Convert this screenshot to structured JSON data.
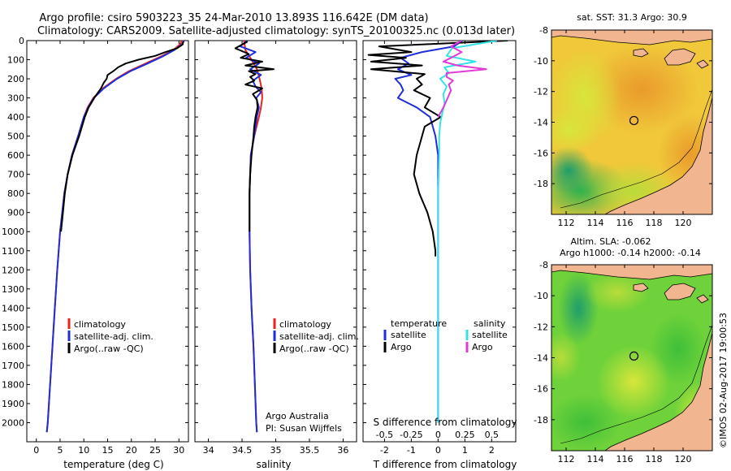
{
  "title_line1": "Argo profile: csiro 5903223_35 24-Mar-2010 13.893S 116.642E (DM data)",
  "title_line2": "Climatology: CARS2009. Satellite-adjusted climatology: synTS_20100325.nc (0.013d later)",
  "colors": {
    "climatology": "#e8231c",
    "satellite": "#1f2fd8",
    "argo": "#000000",
    "sal_satellite": "#33e3e6",
    "sal_argo": "#e23ad6",
    "land": "#f1b58f",
    "sst_bg": "#f0c83a",
    "sla_bg": "#6fd23a"
  },
  "chart_data": [
    {
      "type": "line",
      "id": "temperature",
      "xlabel": "temperature (deg C)",
      "ylabel": "",
      "xlim": [
        -2,
        32
      ],
      "ylim": [
        2100,
        0
      ],
      "xticks": [
        0,
        5,
        10,
        15,
        20,
        25,
        30
      ],
      "yticks": [
        0,
        100,
        200,
        300,
        400,
        500,
        600,
        700,
        800,
        900,
        1000,
        1100,
        1200,
        1300,
        1400,
        1500,
        1600,
        1700,
        1800,
        1900,
        2000
      ],
      "legend": [
        "climatology",
        "satellite-adj. clim.",
        "Argo(..raw -QC)"
      ],
      "series": [
        {
          "name": "climatology",
          "depth": [
            0,
            20,
            50,
            80,
            120,
            160,
            200,
            250,
            300,
            350,
            400,
            500,
            600,
            700,
            800,
            1000,
            1200,
            1400,
            1600,
            1800,
            2000,
            2050
          ],
          "values": [
            30.6,
            30.2,
            28.8,
            26.5,
            23.0,
            19.5,
            16.8,
            14.0,
            12.0,
            10.8,
            10.0,
            8.8,
            7.5,
            6.6,
            5.9,
            5.0,
            4.4,
            3.9,
            3.4,
            2.9,
            2.4,
            2.2
          ]
        },
        {
          "name": "satellite-adj. clim.",
          "depth": [
            0,
            20,
            50,
            80,
            120,
            160,
            200,
            250,
            300,
            350,
            400,
            500,
            600,
            700,
            800,
            1000,
            1200,
            1400,
            1600,
            1800,
            2000,
            2050
          ],
          "values": [
            31.1,
            30.6,
            29.0,
            26.8,
            23.4,
            19.8,
            17.0,
            14.2,
            12.1,
            10.9,
            10.0,
            8.8,
            7.5,
            6.6,
            5.9,
            5.0,
            4.4,
            3.9,
            3.4,
            2.9,
            2.4,
            2.2
          ]
        },
        {
          "name": "Argo(..raw -QC)",
          "depth": [
            5,
            20,
            40,
            60,
            80,
            100,
            120,
            140,
            160,
            180,
            200,
            220,
            250,
            300,
            350,
            400,
            450,
            500,
            600,
            700,
            800,
            900,
            1000
          ],
          "values": [
            30.9,
            30.8,
            29.6,
            27.2,
            25.0,
            21.5,
            18.8,
            17.2,
            16.2,
            15.0,
            14.8,
            14.2,
            13.6,
            12.2,
            11.0,
            10.2,
            9.6,
            9.0,
            7.6,
            6.6,
            6.0,
            5.6,
            5.2
          ]
        }
      ]
    },
    {
      "type": "line",
      "id": "salinity",
      "xlabel": "salinity",
      "ylabel": "",
      "xlim": [
        33.8,
        36.2
      ],
      "ylim": [
        2100,
        0
      ],
      "xticks": [
        34,
        34.5,
        35,
        35.5,
        36
      ],
      "legend": [
        "climatology",
        "satellite-adj. clim.",
        "Argo(..raw -QC)"
      ],
      "annotations": [
        "Argo Australia",
        "PI: Susan Wijffels"
      ],
      "series": [
        {
          "name": "climatology",
          "depth": [
            0,
            50,
            100,
            150,
            200,
            250,
            300,
            350,
            400,
            500,
            600,
            800,
            1000,
            1200,
            1400,
            1600,
            1800,
            2000,
            2050
          ],
          "values": [
            34.53,
            34.55,
            34.64,
            34.72,
            34.76,
            34.79,
            34.8,
            34.78,
            34.75,
            34.68,
            34.63,
            34.61,
            34.61,
            34.62,
            34.64,
            34.67,
            34.69,
            34.71,
            34.72
          ]
        },
        {
          "name": "satellite-adj. clim.",
          "depth": [
            0,
            30,
            60,
            90,
            120,
            150,
            180,
            210,
            240,
            270,
            300,
            350,
            400,
            500,
            600,
            800,
            1000,
            1200,
            1400,
            1600,
            1800,
            2000,
            2050
          ],
          "values": [
            34.58,
            34.47,
            34.7,
            34.56,
            34.75,
            34.62,
            34.78,
            34.66,
            34.7,
            34.78,
            34.71,
            34.75,
            34.72,
            34.68,
            34.63,
            34.61,
            34.61,
            34.62,
            34.64,
            34.67,
            34.69,
            34.71,
            34.72
          ]
        },
        {
          "name": "Argo(..raw -QC)",
          "depth": [
            5,
            40,
            70,
            90,
            110,
            130,
            150,
            160,
            175,
            190,
            210,
            230,
            250,
            280,
            310,
            350,
            400,
            450,
            500,
            600,
            700,
            800,
            900,
            1000
          ],
          "values": [
            34.58,
            34.4,
            34.6,
            34.48,
            34.8,
            34.55,
            34.97,
            34.6,
            34.7,
            34.62,
            34.68,
            34.55,
            34.8,
            34.66,
            34.72,
            34.73,
            34.7,
            34.68,
            34.67,
            34.64,
            34.62,
            34.61,
            34.61,
            34.61
          ]
        }
      ]
    },
    {
      "type": "line",
      "id": "difference",
      "xlabel": "T difference from climatology",
      "x2label": "S difference from climatology",
      "xlim": [
        -2.8,
        2.9
      ],
      "ylim": [
        2100,
        0
      ],
      "xticks": [
        -2,
        -1,
        0,
        1,
        2
      ],
      "x2ticks": [
        "-0.5",
        "-0.25",
        "0",
        "0.25",
        "0.5"
      ],
      "legend": {
        "temperature": [
          "satellite",
          "Argo"
        ],
        "salinity": [
          "satellite",
          "Argo"
        ]
      },
      "legend_headers": [
        "temperature",
        "salinity"
      ],
      "series": [
        {
          "name": "temperature satellite",
          "depth": [
            0,
            30,
            60,
            90,
            120,
            150,
            180,
            200,
            230,
            260,
            300,
            350,
            400,
            450,
            500,
            600,
            800,
            1000,
            1500,
            2000
          ],
          "values": [
            0.9,
            0.6,
            -0.6,
            -1.4,
            -1.1,
            -1.5,
            -1.0,
            -1.6,
            -1.4,
            -1.3,
            -1.5,
            -0.8,
            -0.3,
            -0.2,
            -0.1,
            0,
            0,
            0,
            0,
            0
          ]
        },
        {
          "name": "temperature Argo",
          "depth": [
            0,
            30,
            60,
            75,
            90,
            110,
            130,
            150,
            175,
            200,
            230,
            260,
            300,
            350,
            400,
            450,
            500,
            600,
            700,
            800,
            900,
            1000,
            1100,
            1130
          ],
          "values": [
            2.6,
            -2.2,
            -1.0,
            -2.6,
            -1.2,
            -2.5,
            -0.6,
            -2.5,
            -0.5,
            -0.8,
            -0.6,
            -0.9,
            -0.3,
            -0.5,
            0.1,
            -0.5,
            -0.6,
            -0.8,
            -0.9,
            -0.7,
            -0.4,
            -0.2,
            -0.1,
            -0.1
          ]
        },
        {
          "name": "salinity satellite",
          "depth": [
            0,
            40,
            80,
            110,
            140,
            170,
            200,
            240,
            280,
            330,
            380,
            430,
            500,
            600,
            800,
            1000,
            1500,
            2000
          ],
          "values": [
            0.55,
            0.13,
            0.08,
            0.35,
            0.06,
            0.1,
            0.02,
            0.08,
            0.05,
            0.06,
            0.04,
            0.02,
            0.01,
            0.01,
            0,
            0,
            0,
            0
          ]
        },
        {
          "name": "salinity Argo",
          "depth": [
            0,
            30,
            60,
            90,
            110,
            130,
            150,
            170,
            190,
            210,
            230,
            260,
            300,
            350,
            400
          ],
          "values": [
            0.22,
            0.12,
            0.22,
            0.12,
            0.05,
            0.18,
            0.45,
            0.08,
            0.08,
            0.14,
            0.1,
            0.12,
            0.09,
            0.05,
            0.0
          ]
        }
      ]
    },
    {
      "type": "heatmap",
      "id": "sst_map",
      "title": "sat. SST: 31.3  Argo: 30.9",
      "xticks": [
        112,
        114,
        116,
        118,
        120
      ],
      "yticks": [
        -8,
        -10,
        -12,
        -14,
        -16,
        -18
      ],
      "xlim": [
        111,
        122
      ],
      "ylim": [
        -20,
        -8
      ],
      "marker_lon": 116.64,
      "marker_lat": -13.89
    },
    {
      "type": "heatmap",
      "id": "sla_map",
      "title_line1": "Altim. SLA: -0.062",
      "title_line2": "Argo h1000: -0.14 h2000: -0.14",
      "xticks": [
        112,
        114,
        116,
        118,
        120
      ],
      "yticks": [
        -8,
        -10,
        -12,
        -14,
        -16,
        -18
      ],
      "xlim": [
        111,
        122
      ],
      "ylim": [
        -20,
        -8
      ],
      "marker_lon": 116.64,
      "marker_lat": -13.89
    }
  ],
  "footer": "©IMOS 02-Aug-2017 19:00:53"
}
